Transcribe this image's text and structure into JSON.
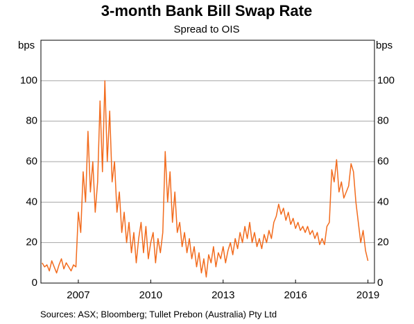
{
  "chart_data": {
    "type": "line",
    "title": "3-month Bank Bill Swap Rate",
    "subtitle": "Spread to OIS",
    "y_label": "bps",
    "y2_label": "bps",
    "source": "Sources:   ASX; Bloomberg; Tullet Prebon (Australia) Pty Ltd",
    "xlim": [
      2005.95,
      2019.77
    ],
    "xticks": [
      {
        "value": 2007.5,
        "label": "2007"
      },
      {
        "value": 2010.5,
        "label": "2010"
      },
      {
        "value": 2013.5,
        "label": "2013"
      },
      {
        "value": 2016.5,
        "label": "2016"
      },
      {
        "value": 2019.5,
        "label": "2019"
      }
    ],
    "ylim": [
      0,
      120
    ],
    "yticks": [
      0,
      20,
      40,
      60,
      80,
      100
    ],
    "y2lim": [
      0,
      120
    ],
    "y2ticks": [
      0,
      20,
      40,
      60,
      80,
      100
    ],
    "grid": true,
    "x": [
      2006.0,
      2006.1,
      2006.2,
      2006.3,
      2006.4,
      2006.5,
      2006.6,
      2006.7,
      2006.8,
      2006.9,
      2007.0,
      2007.1,
      2007.2,
      2007.3,
      2007.4,
      2007.5,
      2007.6,
      2007.7,
      2007.8,
      2007.9,
      2008.0,
      2008.1,
      2008.2,
      2008.3,
      2008.4,
      2008.5,
      2008.6,
      2008.7,
      2008.8,
      2008.9,
      2009.0,
      2009.1,
      2009.2,
      2009.3,
      2009.4,
      2009.5,
      2009.6,
      2009.7,
      2009.8,
      2009.9,
      2010.0,
      2010.1,
      2010.2,
      2010.3,
      2010.4,
      2010.5,
      2010.6,
      2010.7,
      2010.8,
      2010.9,
      2011.0,
      2011.1,
      2011.2,
      2011.3,
      2011.4,
      2011.5,
      2011.6,
      2011.7,
      2011.8,
      2011.9,
      2012.0,
      2012.1,
      2012.2,
      2012.3,
      2012.4,
      2012.5,
      2012.6,
      2012.7,
      2012.8,
      2012.9,
      2013.0,
      2013.1,
      2013.2,
      2013.3,
      2013.4,
      2013.5,
      2013.6,
      2013.7,
      2013.8,
      2013.9,
      2014.0,
      2014.1,
      2014.2,
      2014.3,
      2014.4,
      2014.5,
      2014.6,
      2014.7,
      2014.8,
      2014.9,
      2015.0,
      2015.1,
      2015.2,
      2015.3,
      2015.4,
      2015.5,
      2015.6,
      2015.7,
      2015.8,
      2015.9,
      2016.0,
      2016.1,
      2016.2,
      2016.3,
      2016.4,
      2016.5,
      2016.6,
      2016.7,
      2016.8,
      2016.9,
      2017.0,
      2017.1,
      2017.2,
      2017.3,
      2017.4,
      2017.5,
      2017.6,
      2017.7,
      2017.8,
      2017.9,
      2018.0,
      2018.1,
      2018.2,
      2018.3,
      2018.4,
      2018.5,
      2018.6,
      2018.7,
      2018.8,
      2018.9,
      2019.0,
      2019.1,
      2019.2,
      2019.3,
      2019.4,
      2019.5
    ],
    "series": [
      {
        "name": "Spread",
        "color": "#f26b1d",
        "values": [
          10,
          8,
          9,
          6,
          11,
          8,
          5,
          9,
          12,
          7,
          10,
          8,
          6,
          9,
          8,
          35,
          25,
          55,
          40,
          75,
          45,
          60,
          35,
          50,
          90,
          55,
          100,
          60,
          85,
          50,
          60,
          35,
          45,
          25,
          35,
          20,
          30,
          15,
          25,
          10,
          22,
          30,
          15,
          28,
          12,
          20,
          25,
          10,
          22,
          15,
          25,
          65,
          40,
          55,
          30,
          45,
          25,
          30,
          18,
          25,
          15,
          22,
          12,
          18,
          8,
          15,
          5,
          12,
          3,
          14,
          10,
          18,
          8,
          15,
          12,
          18,
          10,
          16,
          20,
          14,
          22,
          17,
          25,
          20,
          28,
          22,
          30,
          20,
          25,
          18,
          22,
          17,
          24,
          20,
          26,
          22,
          30,
          33,
          39,
          34,
          37,
          31,
          35,
          29,
          32,
          27,
          30,
          26,
          28,
          25,
          28,
          24,
          26,
          22,
          25,
          19,
          22,
          19,
          28,
          30,
          56,
          50,
          61,
          45,
          50,
          42,
          45,
          48,
          59,
          55,
          40,
          30,
          20,
          26,
          16,
          11
        ]
      }
    ]
  }
}
